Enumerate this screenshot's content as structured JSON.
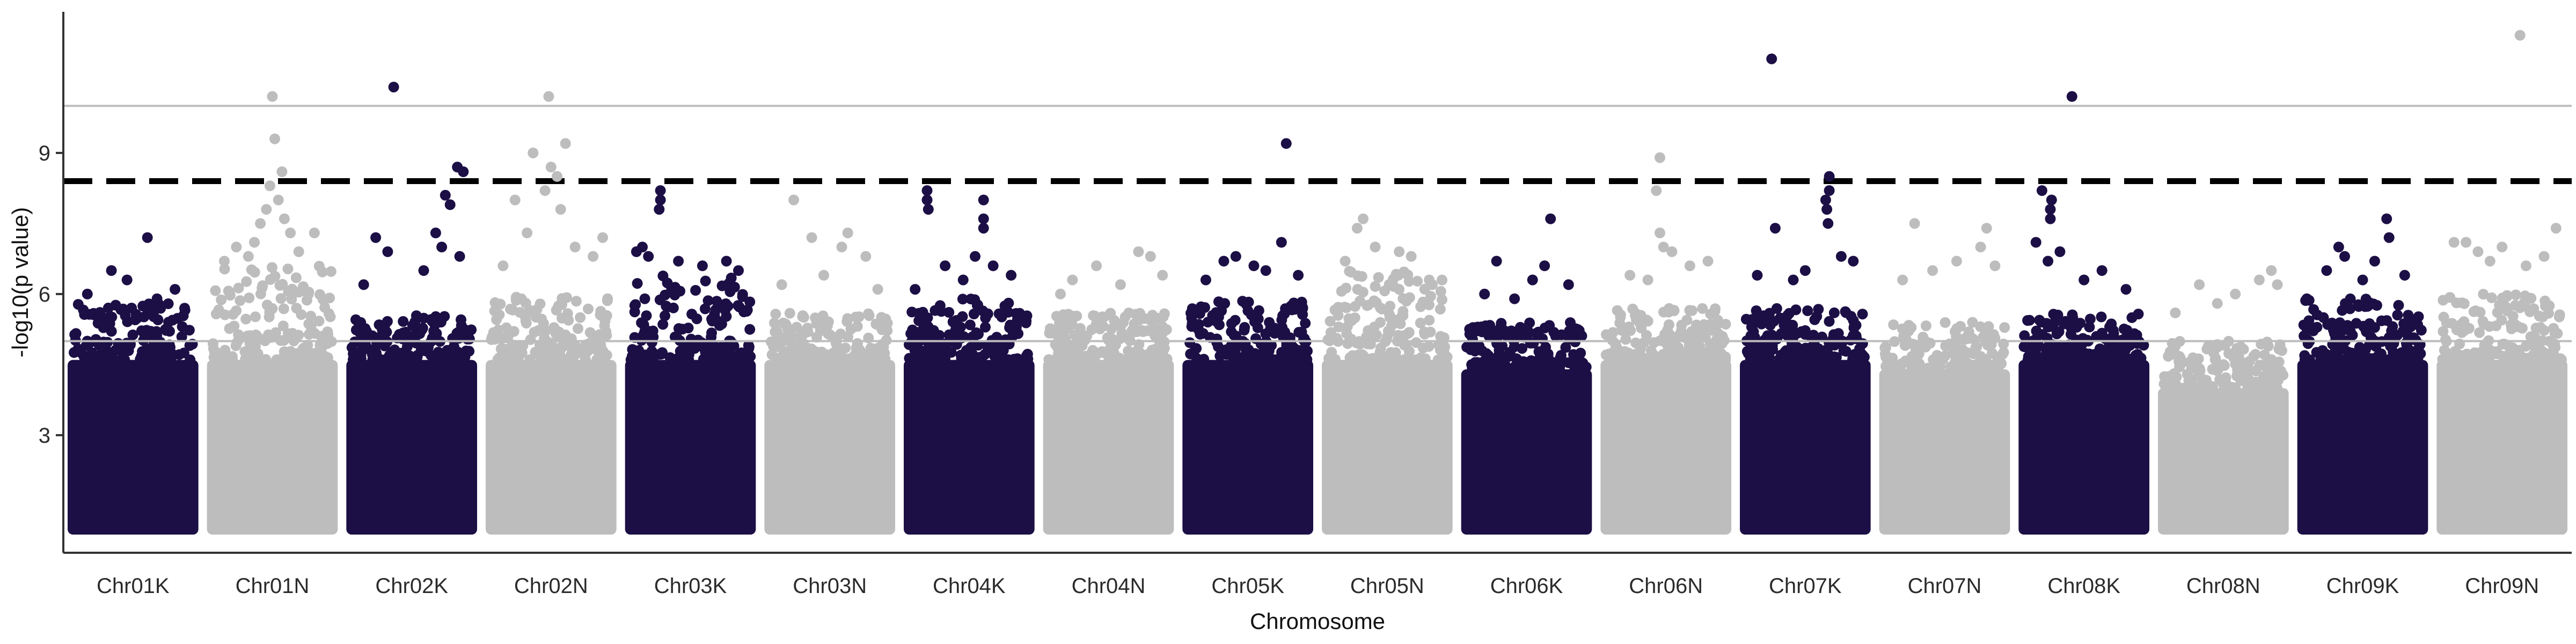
{
  "chart_data": {
    "type": "scatter",
    "title": "",
    "xlabel": "Chromosome",
    "ylabel": "-log10(p value)",
    "ylim": [
      0.5,
      12
    ],
    "yticks": [
      3,
      6,
      9
    ],
    "grid": false,
    "legend": "none",
    "reference_lines": {
      "suggestive": 5,
      "upper": 10,
      "genome_wide_dashed": 8.4
    },
    "colors": {
      "dark": "#1c0f45",
      "light": "#bdbdbd",
      "reference_line": "#bdbdbd",
      "threshold_line": "#000000",
      "axis": "#333333"
    },
    "categories": [
      "Chr01K",
      "Chr01N",
      "Chr02K",
      "Chr02N",
      "Chr03K",
      "Chr03N",
      "Chr04K",
      "Chr04N",
      "Chr05K",
      "Chr05N",
      "Chr06K",
      "Chr06N",
      "Chr07K",
      "Chr07N",
      "Chr08K",
      "Chr08N",
      "Chr09K",
      "Chr09N"
    ],
    "series": [
      {
        "category": "Chr01K",
        "color_group": "dark",
        "background_peak": 5.8,
        "points": [
          [
            0.62,
            7.2
          ],
          [
            0.32,
            6.5
          ],
          [
            0.85,
            6.1
          ],
          [
            0.12,
            6.0
          ],
          [
            0.45,
            6.3
          ],
          [
            0.7,
            5.9
          ],
          [
            0.93,
            5.7
          ],
          [
            0.25,
            5.5
          ]
        ]
      },
      {
        "category": "Chr01N",
        "color_group": "light",
        "background_peak": 6.6,
        "points": [
          [
            0.5,
            10.2
          ],
          [
            0.52,
            9.3
          ],
          [
            0.58,
            8.6
          ],
          [
            0.48,
            8.3
          ],
          [
            0.55,
            8.0
          ],
          [
            0.45,
            7.8
          ],
          [
            0.6,
            7.6
          ],
          [
            0.4,
            7.5
          ],
          [
            0.35,
            7.1
          ],
          [
            0.65,
            7.3
          ],
          [
            0.85,
            7.3
          ],
          [
            0.2,
            7.0
          ],
          [
            0.3,
            6.8
          ],
          [
            0.72,
            6.9
          ],
          [
            0.1,
            6.7
          ]
        ]
      },
      {
        "category": "Chr02K",
        "color_group": "dark",
        "background_peak": 5.6,
        "points": [
          [
            0.35,
            10.4
          ],
          [
            0.88,
            8.7
          ],
          [
            0.93,
            8.6
          ],
          [
            0.78,
            8.1
          ],
          [
            0.82,
            7.9
          ],
          [
            0.7,
            7.3
          ],
          [
            0.75,
            7.0
          ],
          [
            0.2,
            7.2
          ],
          [
            0.3,
            6.9
          ],
          [
            0.9,
            6.8
          ],
          [
            0.6,
            6.5
          ],
          [
            0.1,
            6.2
          ]
        ]
      },
      {
        "category": "Chr02N",
        "color_group": "light",
        "background_peak": 6.0,
        "points": [
          [
            0.48,
            10.2
          ],
          [
            0.62,
            9.2
          ],
          [
            0.35,
            9.0
          ],
          [
            0.5,
            8.7
          ],
          [
            0.55,
            8.5
          ],
          [
            0.45,
            8.2
          ],
          [
            0.2,
            8.0
          ],
          [
            0.58,
            7.8
          ],
          [
            0.3,
            7.3
          ],
          [
            0.7,
            7.0
          ],
          [
            0.85,
            6.8
          ],
          [
            0.1,
            6.6
          ],
          [
            0.93,
            7.2
          ]
        ]
      },
      {
        "category": "Chr03K",
        "color_group": "dark",
        "background_peak": 6.4,
        "points": [
          [
            0.25,
            8.2
          ],
          [
            0.25,
            8.0
          ],
          [
            0.24,
            7.8
          ],
          [
            0.1,
            7.0
          ],
          [
            0.05,
            6.9
          ],
          [
            0.4,
            6.7
          ],
          [
            0.6,
            6.6
          ],
          [
            0.8,
            6.7
          ],
          [
            0.9,
            6.5
          ],
          [
            0.15,
            6.8
          ]
        ]
      },
      {
        "category": "Chr03N",
        "color_group": "light",
        "background_peak": 5.6,
        "points": [
          [
            0.2,
            8.0
          ],
          [
            0.35,
            7.2
          ],
          [
            0.6,
            7.0
          ],
          [
            0.65,
            7.3
          ],
          [
            0.8,
            6.8
          ],
          [
            0.45,
            6.4
          ],
          [
            0.1,
            6.2
          ],
          [
            0.9,
            6.1
          ]
        ]
      },
      {
        "category": "Chr04K",
        "color_group": "dark",
        "background_peak": 5.9,
        "points": [
          [
            0.15,
            8.2
          ],
          [
            0.15,
            8.0
          ],
          [
            0.16,
            7.8
          ],
          [
            0.62,
            8.0
          ],
          [
            0.62,
            7.6
          ],
          [
            0.62,
            7.4
          ],
          [
            0.55,
            6.8
          ],
          [
            0.7,
            6.6
          ],
          [
            0.3,
            6.6
          ],
          [
            0.85,
            6.4
          ],
          [
            0.45,
            6.3
          ],
          [
            0.05,
            6.1
          ]
        ]
      },
      {
        "category": "Chr04N",
        "color_group": "light",
        "background_peak": 5.6,
        "points": [
          [
            0.4,
            6.6
          ],
          [
            0.75,
            6.9
          ],
          [
            0.85,
            6.8
          ],
          [
            0.2,
            6.3
          ],
          [
            0.6,
            6.2
          ],
          [
            0.1,
            6.0
          ],
          [
            0.95,
            6.4
          ]
        ]
      },
      {
        "category": "Chr05K",
        "color_group": "dark",
        "background_peak": 5.9,
        "points": [
          [
            0.82,
            9.2
          ],
          [
            0.78,
            7.1
          ],
          [
            0.4,
            6.8
          ],
          [
            0.3,
            6.7
          ],
          [
            0.55,
            6.6
          ],
          [
            0.65,
            6.5
          ],
          [
            0.15,
            6.3
          ],
          [
            0.92,
            6.4
          ]
        ]
      },
      {
        "category": "Chr05N",
        "color_group": "light",
        "background_peak": 6.5,
        "points": [
          [
            0.3,
            7.6
          ],
          [
            0.25,
            7.4
          ],
          [
            0.4,
            7.0
          ],
          [
            0.6,
            6.9
          ],
          [
            0.7,
            6.8
          ],
          [
            0.15,
            6.7
          ],
          [
            0.85,
            6.3
          ]
        ]
      },
      {
        "category": "Chr06K",
        "color_group": "dark",
        "background_peak": 5.4,
        "points": [
          [
            0.7,
            7.6
          ],
          [
            0.25,
            6.7
          ],
          [
            0.65,
            6.6
          ],
          [
            0.55,
            6.3
          ],
          [
            0.85,
            6.2
          ],
          [
            0.4,
            5.9
          ],
          [
            0.15,
            6.0
          ]
        ]
      },
      {
        "category": "Chr06N",
        "color_group": "light",
        "background_peak": 5.7,
        "points": [
          [
            0.45,
            8.9
          ],
          [
            0.42,
            8.2
          ],
          [
            0.45,
            7.3
          ],
          [
            0.48,
            7.0
          ],
          [
            0.55,
            6.9
          ],
          [
            0.7,
            6.6
          ],
          [
            0.2,
            6.4
          ],
          [
            0.85,
            6.7
          ],
          [
            0.35,
            6.3
          ]
        ]
      },
      {
        "category": "Chr07K",
        "color_group": "dark",
        "background_peak": 5.7,
        "points": [
          [
            0.22,
            11.0
          ],
          [
            0.7,
            8.5
          ],
          [
            0.7,
            8.2
          ],
          [
            0.67,
            8.0
          ],
          [
            0.68,
            7.8
          ],
          [
            0.69,
            7.5
          ],
          [
            0.25,
            7.4
          ],
          [
            0.8,
            6.8
          ],
          [
            0.5,
            6.5
          ],
          [
            0.4,
            6.3
          ],
          [
            0.9,
            6.7
          ],
          [
            0.1,
            6.4
          ]
        ]
      },
      {
        "category": "Chr07N",
        "color_group": "light",
        "background_peak": 5.4,
        "points": [
          [
            0.85,
            7.4
          ],
          [
            0.25,
            7.5
          ],
          [
            0.8,
            7.0
          ],
          [
            0.6,
            6.7
          ],
          [
            0.4,
            6.5
          ],
          [
            0.15,
            6.3
          ],
          [
            0.92,
            6.6
          ]
        ]
      },
      {
        "category": "Chr08K",
        "color_group": "dark",
        "background_peak": 5.6,
        "points": [
          [
            0.4,
            10.2
          ],
          [
            0.15,
            8.2
          ],
          [
            0.23,
            8.0
          ],
          [
            0.22,
            7.8
          ],
          [
            0.22,
            7.6
          ],
          [
            0.1,
            7.1
          ],
          [
            0.3,
            6.9
          ],
          [
            0.65,
            6.5
          ],
          [
            0.5,
            6.3
          ],
          [
            0.85,
            6.1
          ],
          [
            0.2,
            6.7
          ]
        ]
      },
      {
        "category": "Chr08N",
        "color_group": "light",
        "background_peak": 5.0,
        "points": [
          [
            0.9,
            6.5
          ],
          [
            0.8,
            6.3
          ],
          [
            0.6,
            6.0
          ],
          [
            0.3,
            6.2
          ],
          [
            0.45,
            5.8
          ],
          [
            0.1,
            5.6
          ],
          [
            0.95,
            6.2
          ]
        ]
      },
      {
        "category": "Chr09K",
        "color_group": "dark",
        "background_peak": 5.9,
        "points": [
          [
            0.7,
            7.6
          ],
          [
            0.3,
            7.0
          ],
          [
            0.35,
            6.8
          ],
          [
            0.72,
            7.2
          ],
          [
            0.6,
            6.7
          ],
          [
            0.2,
            6.5
          ],
          [
            0.85,
            6.4
          ],
          [
            0.5,
            6.3
          ]
        ]
      },
      {
        "category": "Chr09N",
        "color_group": "light",
        "background_peak": 6.0,
        "points": [
          [
            0.65,
            11.5
          ],
          [
            0.2,
            7.1
          ],
          [
            0.5,
            7.0
          ],
          [
            0.1,
            7.1
          ],
          [
            0.85,
            6.8
          ],
          [
            0.95,
            7.4
          ],
          [
            0.4,
            6.7
          ],
          [
            0.7,
            6.6
          ],
          [
            0.3,
            6.9
          ]
        ]
      }
    ]
  }
}
